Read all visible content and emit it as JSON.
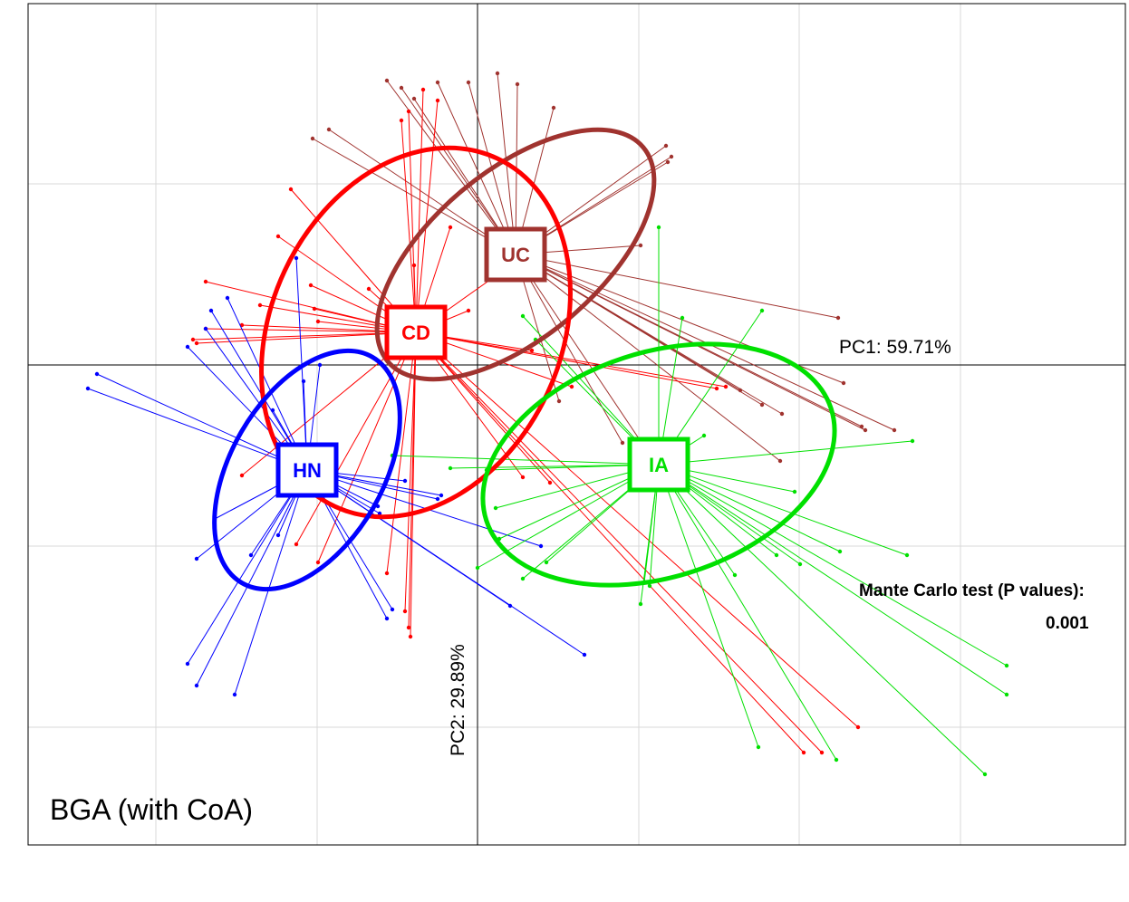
{
  "chart_data": {
    "type": "scatter",
    "subtype": "between-group analysis ordination with star plots and 95% ellipses",
    "title": "BGA (with CoA)",
    "xlabel": "PC1: 59.71%",
    "ylabel": "PC2: 29.89%",
    "grid": true,
    "legend": "none",
    "annotations": [
      {
        "text": "Mante Carlo test (P values):"
      },
      {
        "text": "0.001"
      }
    ],
    "colors": {
      "UC": "#a0332f",
      "CD": "#ff0000",
      "HN": "#0000ff",
      "IA": "#00e000"
    },
    "groups": [
      {
        "name": "UC",
        "center": [
          0.21,
          0.61
        ],
        "ellipse": {
          "rx": 0.92,
          "ry": 0.46,
          "rotation_deg": 40
        },
        "points": [
          [
            -0.5,
            1.57
          ],
          [
            -0.42,
            1.53
          ],
          [
            -0.35,
            1.47
          ],
          [
            -0.22,
            1.56
          ],
          [
            -0.05,
            1.56
          ],
          [
            0.11,
            1.61
          ],
          [
            0.22,
            1.55
          ],
          [
            0.42,
            1.42
          ],
          [
            -0.82,
            1.3
          ],
          [
            -0.91,
            1.25
          ],
          [
            1.04,
            1.21
          ],
          [
            1.07,
            1.15
          ],
          [
            1.05,
            1.12
          ],
          [
            0.9,
            0.66
          ],
          [
            1.99,
            0.26
          ],
          [
            2.02,
            -0.1
          ],
          [
            2.12,
            -0.34
          ],
          [
            2.14,
            -0.36
          ],
          [
            2.3,
            -0.36
          ],
          [
            1.68,
            -0.27
          ],
          [
            1.45,
            -0.14
          ],
          [
            1.57,
            -0.22
          ],
          [
            1.67,
            -0.53
          ],
          [
            1.08,
            -0.69
          ],
          [
            0.8,
            -0.43
          ],
          [
            0.45,
            -0.2
          ]
        ]
      },
      {
        "name": "CD",
        "center": [
          -0.34,
          0.18
        ],
        "ellipse": {
          "rx": 1.06,
          "ry": 0.8,
          "rotation_deg": 65
        },
        "points": [
          [
            -0.3,
            1.52
          ],
          [
            -0.22,
            1.46
          ],
          [
            -0.42,
            1.35
          ],
          [
            -0.38,
            1.4
          ],
          [
            -1.03,
            0.97
          ],
          [
            -1.1,
            0.71
          ],
          [
            -1.5,
            0.46
          ],
          [
            -1.5,
            0.2
          ],
          [
            -1.55,
            0.12
          ],
          [
            -1.57,
            0.14
          ],
          [
            -1.3,
            0.22
          ],
          [
            -0.92,
            0.44
          ],
          [
            -0.9,
            0.31
          ],
          [
            -0.88,
            0.24
          ],
          [
            -1.2,
            0.33
          ],
          [
            -0.6,
            0.42
          ],
          [
            -0.35,
            0.55
          ],
          [
            -0.15,
            0.76
          ],
          [
            0.14,
            0.52
          ],
          [
            -1.3,
            -0.61
          ],
          [
            -1.0,
            -0.99
          ],
          [
            -0.88,
            -1.09
          ],
          [
            -0.5,
            -1.15
          ],
          [
            -0.4,
            -1.36
          ],
          [
            -0.38,
            -1.45
          ],
          [
            -0.37,
            -1.5
          ],
          [
            0.4,
            -0.65
          ],
          [
            0.25,
            -0.62
          ],
          [
            0.52,
            -0.12
          ],
          [
            1.37,
            -0.12
          ],
          [
            1.32,
            -0.13
          ],
          [
            2.1,
            -2.0
          ],
          [
            1.9,
            -2.14
          ],
          [
            1.8,
            -2.14
          ],
          [
            -0.05,
            0.3
          ],
          [
            0.3,
            0.08
          ]
        ]
      },
      {
        "name": "HN",
        "center": [
          -0.94,
          -0.58
        ],
        "ellipse": {
          "rx": 0.72,
          "ry": 0.42,
          "rotation_deg": 60
        },
        "points": [
          [
            -1.0,
            0.59
          ],
          [
            -1.38,
            0.37
          ],
          [
            -1.5,
            0.2
          ],
          [
            -1.47,
            0.3
          ],
          [
            -1.6,
            0.1
          ],
          [
            -0.87,
            0.0
          ],
          [
            -0.96,
            -0.09
          ],
          [
            -1.13,
            -0.25
          ],
          [
            -2.1,
            -0.05
          ],
          [
            -2.15,
            -0.13
          ],
          [
            -0.55,
            -0.78
          ],
          [
            -0.54,
            -0.82
          ],
          [
            -0.4,
            -0.64
          ],
          [
            0.35,
            -1.0
          ],
          [
            0.18,
            -1.33
          ],
          [
            0.59,
            -1.6
          ],
          [
            -1.45,
            -0.85
          ],
          [
            -1.25,
            -1.05
          ],
          [
            -1.55,
            -1.07
          ],
          [
            -1.6,
            -1.65
          ],
          [
            -1.55,
            -1.77
          ],
          [
            -1.34,
            -1.82
          ],
          [
            -0.2,
            -0.72
          ],
          [
            -0.22,
            -0.74
          ],
          [
            -0.5,
            -1.4
          ],
          [
            -0.47,
            -1.35
          ],
          [
            -1.1,
            -0.94
          ]
        ]
      },
      {
        "name": "IA",
        "center": [
          1.0,
          -0.55
        ],
        "ellipse": {
          "rx": 1.0,
          "ry": 0.62,
          "rotation_deg": 18
        },
        "points": [
          [
            1.0,
            0.76
          ],
          [
            1.13,
            0.26
          ],
          [
            1.57,
            0.3
          ],
          [
            0.25,
            0.27
          ],
          [
            0.32,
            0.14
          ],
          [
            1.25,
            -0.39
          ],
          [
            1.07,
            -0.43
          ],
          [
            2.4,
            -0.42
          ],
          [
            -0.47,
            -0.5
          ],
          [
            -0.15,
            -0.57
          ],
          [
            0.05,
            -0.58
          ],
          [
            0.1,
            -0.79
          ],
          [
            0.12,
            -0.96
          ],
          [
            0.0,
            -1.12
          ],
          [
            0.25,
            -1.18
          ],
          [
            0.38,
            -1.09
          ],
          [
            0.9,
            -1.32
          ],
          [
            1.75,
            -0.7
          ],
          [
            2.0,
            -1.03
          ],
          [
            2.37,
            -1.05
          ],
          [
            1.42,
            -1.16
          ],
          [
            1.65,
            -1.05
          ],
          [
            1.78,
            -1.1
          ],
          [
            2.92,
            -1.66
          ],
          [
            2.92,
            -1.82
          ],
          [
            2.8,
            -2.26
          ],
          [
            1.98,
            -2.18
          ],
          [
            1.55,
            -2.11
          ],
          [
            0.92,
            -1.2
          ],
          [
            0.95,
            -1.22
          ]
        ]
      }
    ]
  }
}
